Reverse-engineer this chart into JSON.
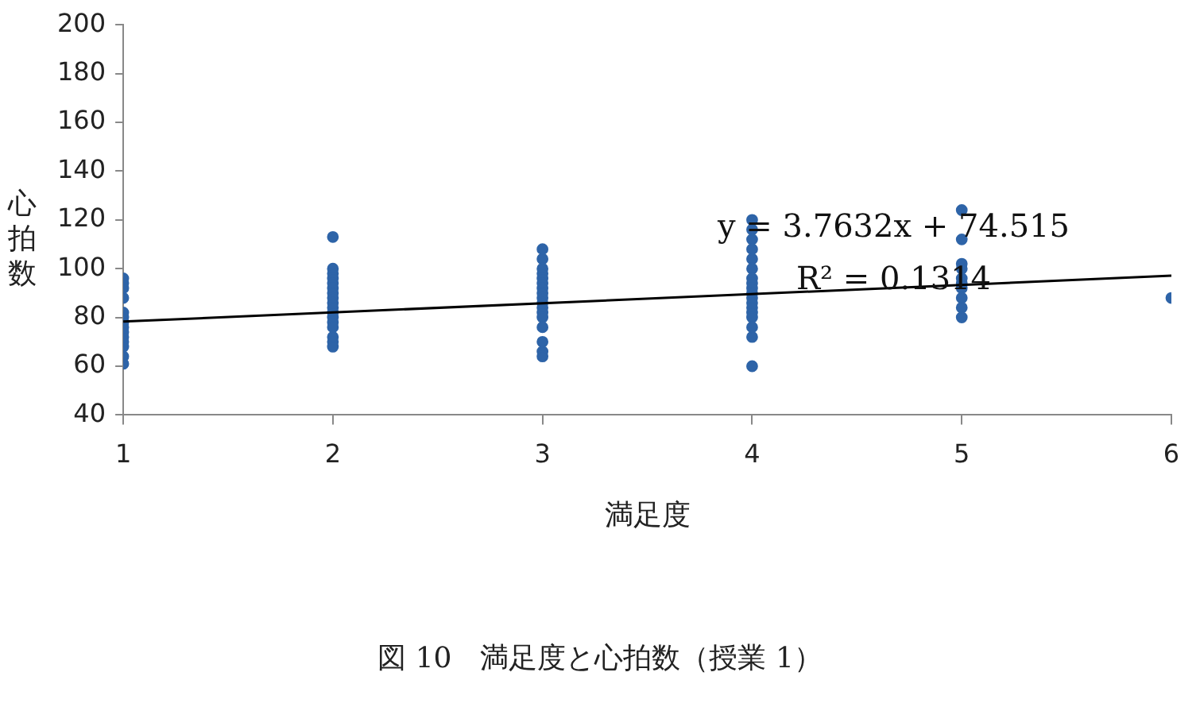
{
  "chart_data": {
    "type": "scatter",
    "xlabel": "満足度",
    "ylabel": "心拍数",
    "xlim": [
      1,
      6
    ],
    "xticks": [
      1,
      2,
      3,
      4,
      5,
      6
    ],
    "ylim": [
      40,
      200
    ],
    "yticks": [
      40,
      60,
      80,
      100,
      120,
      140,
      160,
      180,
      200
    ],
    "grid": false,
    "legend": false,
    "marker": "circle",
    "series": [
      {
        "color": "#2e64a8",
        "x": [
          1,
          1,
          1,
          1,
          1,
          1,
          1,
          1,
          1,
          1,
          1,
          1,
          1,
          1,
          2,
          2,
          2,
          2,
          2,
          2,
          2,
          2,
          2,
          2,
          2,
          2,
          2,
          2,
          2,
          2,
          2,
          3,
          3,
          3,
          3,
          3,
          3,
          3,
          3,
          3,
          3,
          3,
          3,
          3,
          3,
          3,
          3,
          3,
          4,
          4,
          4,
          4,
          4,
          4,
          4,
          4,
          4,
          4,
          4,
          4,
          4,
          4,
          4,
          4,
          4,
          4,
          5,
          5,
          5,
          5,
          5,
          5,
          5,
          5,
          5,
          5,
          6
        ],
        "values": [
          96,
          94,
          92,
          88,
          82,
          80,
          78,
          76,
          74,
          72,
          70,
          68,
          64,
          61,
          113,
          100,
          98,
          96,
          94,
          92,
          90,
          88,
          86,
          84,
          82,
          80,
          78,
          76,
          72,
          70,
          68,
          108,
          104,
          100,
          98,
          96,
          94,
          92,
          90,
          88,
          86,
          84,
          82,
          80,
          76,
          70,
          66,
          64,
          120,
          116,
          112,
          108,
          104,
          100,
          96,
          94,
          92,
          90,
          88,
          86,
          84,
          82,
          80,
          76,
          72,
          60,
          124,
          112,
          102,
          100,
          96,
          94,
          92,
          88,
          84,
          80,
          88
        ]
      },
      {
        "type": "line",
        "color": "#000000",
        "marker": "none",
        "x": [
          1,
          6
        ],
        "values": [
          78.3,
          97.1
        ]
      }
    ],
    "annotations": [
      "y = 3.7632x + 74.515",
      "R² = 0.1314",
      "図 10　満足度と心拍数（授業 1）"
    ]
  }
}
